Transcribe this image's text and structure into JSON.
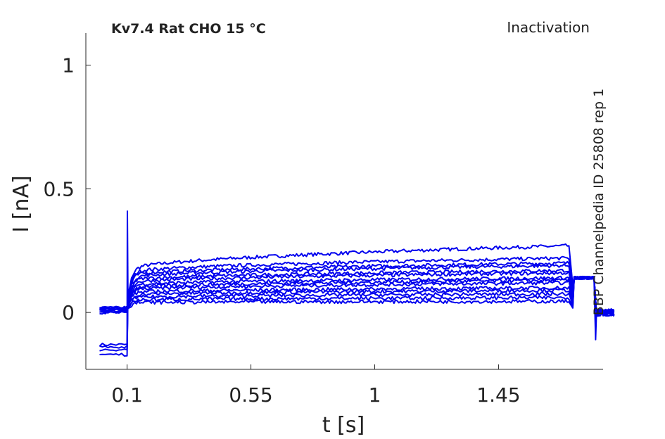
{
  "chart_data": {
    "type": "line",
    "title": "Kv7.4  Rat  CHO  15 °C",
    "protocol": "Inactivation",
    "source": "BBP Channelpedia ID 25808 rep 1",
    "xlabel": "t [s]",
    "ylabel": "I [nA]",
    "xlim": [
      -0.05,
      1.83
    ],
    "ylim": [
      -0.23,
      1.13
    ],
    "x_ticks": [
      0.1,
      0.55,
      1,
      1.45
    ],
    "x_tick_labels": [
      "0.1",
      "0.55",
      "1",
      "1.45"
    ],
    "y_ticks": [
      0,
      0.5,
      1
    ],
    "y_tick_labels": [
      "0",
      "0.5",
      "1"
    ],
    "grid": false,
    "legend": "none",
    "color": "#0000ee",
    "trace_count": 14,
    "segments": {
      "holding": [
        0.0,
        0.1
      ],
      "test": [
        0.1,
        1.71
      ],
      "tail": [
        1.71,
        1.8
      ],
      "end": 1.87
    },
    "holding_levels": [
      -0.13,
      -0.14,
      -0.15,
      -0.17,
      0.0,
      0.005,
      0.01,
      0.015,
      0.02,
      0.0,
      0.01,
      0.015,
      0.005,
      0.02
    ],
    "series": [
      {
        "start": 0.17,
        "end": 0.27
      },
      {
        "start": 0.16,
        "end": 0.22
      },
      {
        "start": 0.15,
        "end": 0.2
      },
      {
        "start": 0.14,
        "end": 0.19
      },
      {
        "start": 0.13,
        "end": 0.17
      },
      {
        "start": 0.12,
        "end": 0.16
      },
      {
        "start": 0.11,
        "end": 0.14
      },
      {
        "start": 0.1,
        "end": 0.13
      },
      {
        "start": 0.09,
        "end": 0.12
      },
      {
        "start": 0.08,
        "end": 0.1
      },
      {
        "start": 0.07,
        "end": 0.09
      },
      {
        "start": 0.06,
        "end": 0.075
      },
      {
        "start": 0.05,
        "end": 0.06
      },
      {
        "start": 0.04,
        "end": 0.045
      }
    ],
    "tail_value": 0.14,
    "spike_peak": 0.41,
    "end_dip": -0.11
  }
}
